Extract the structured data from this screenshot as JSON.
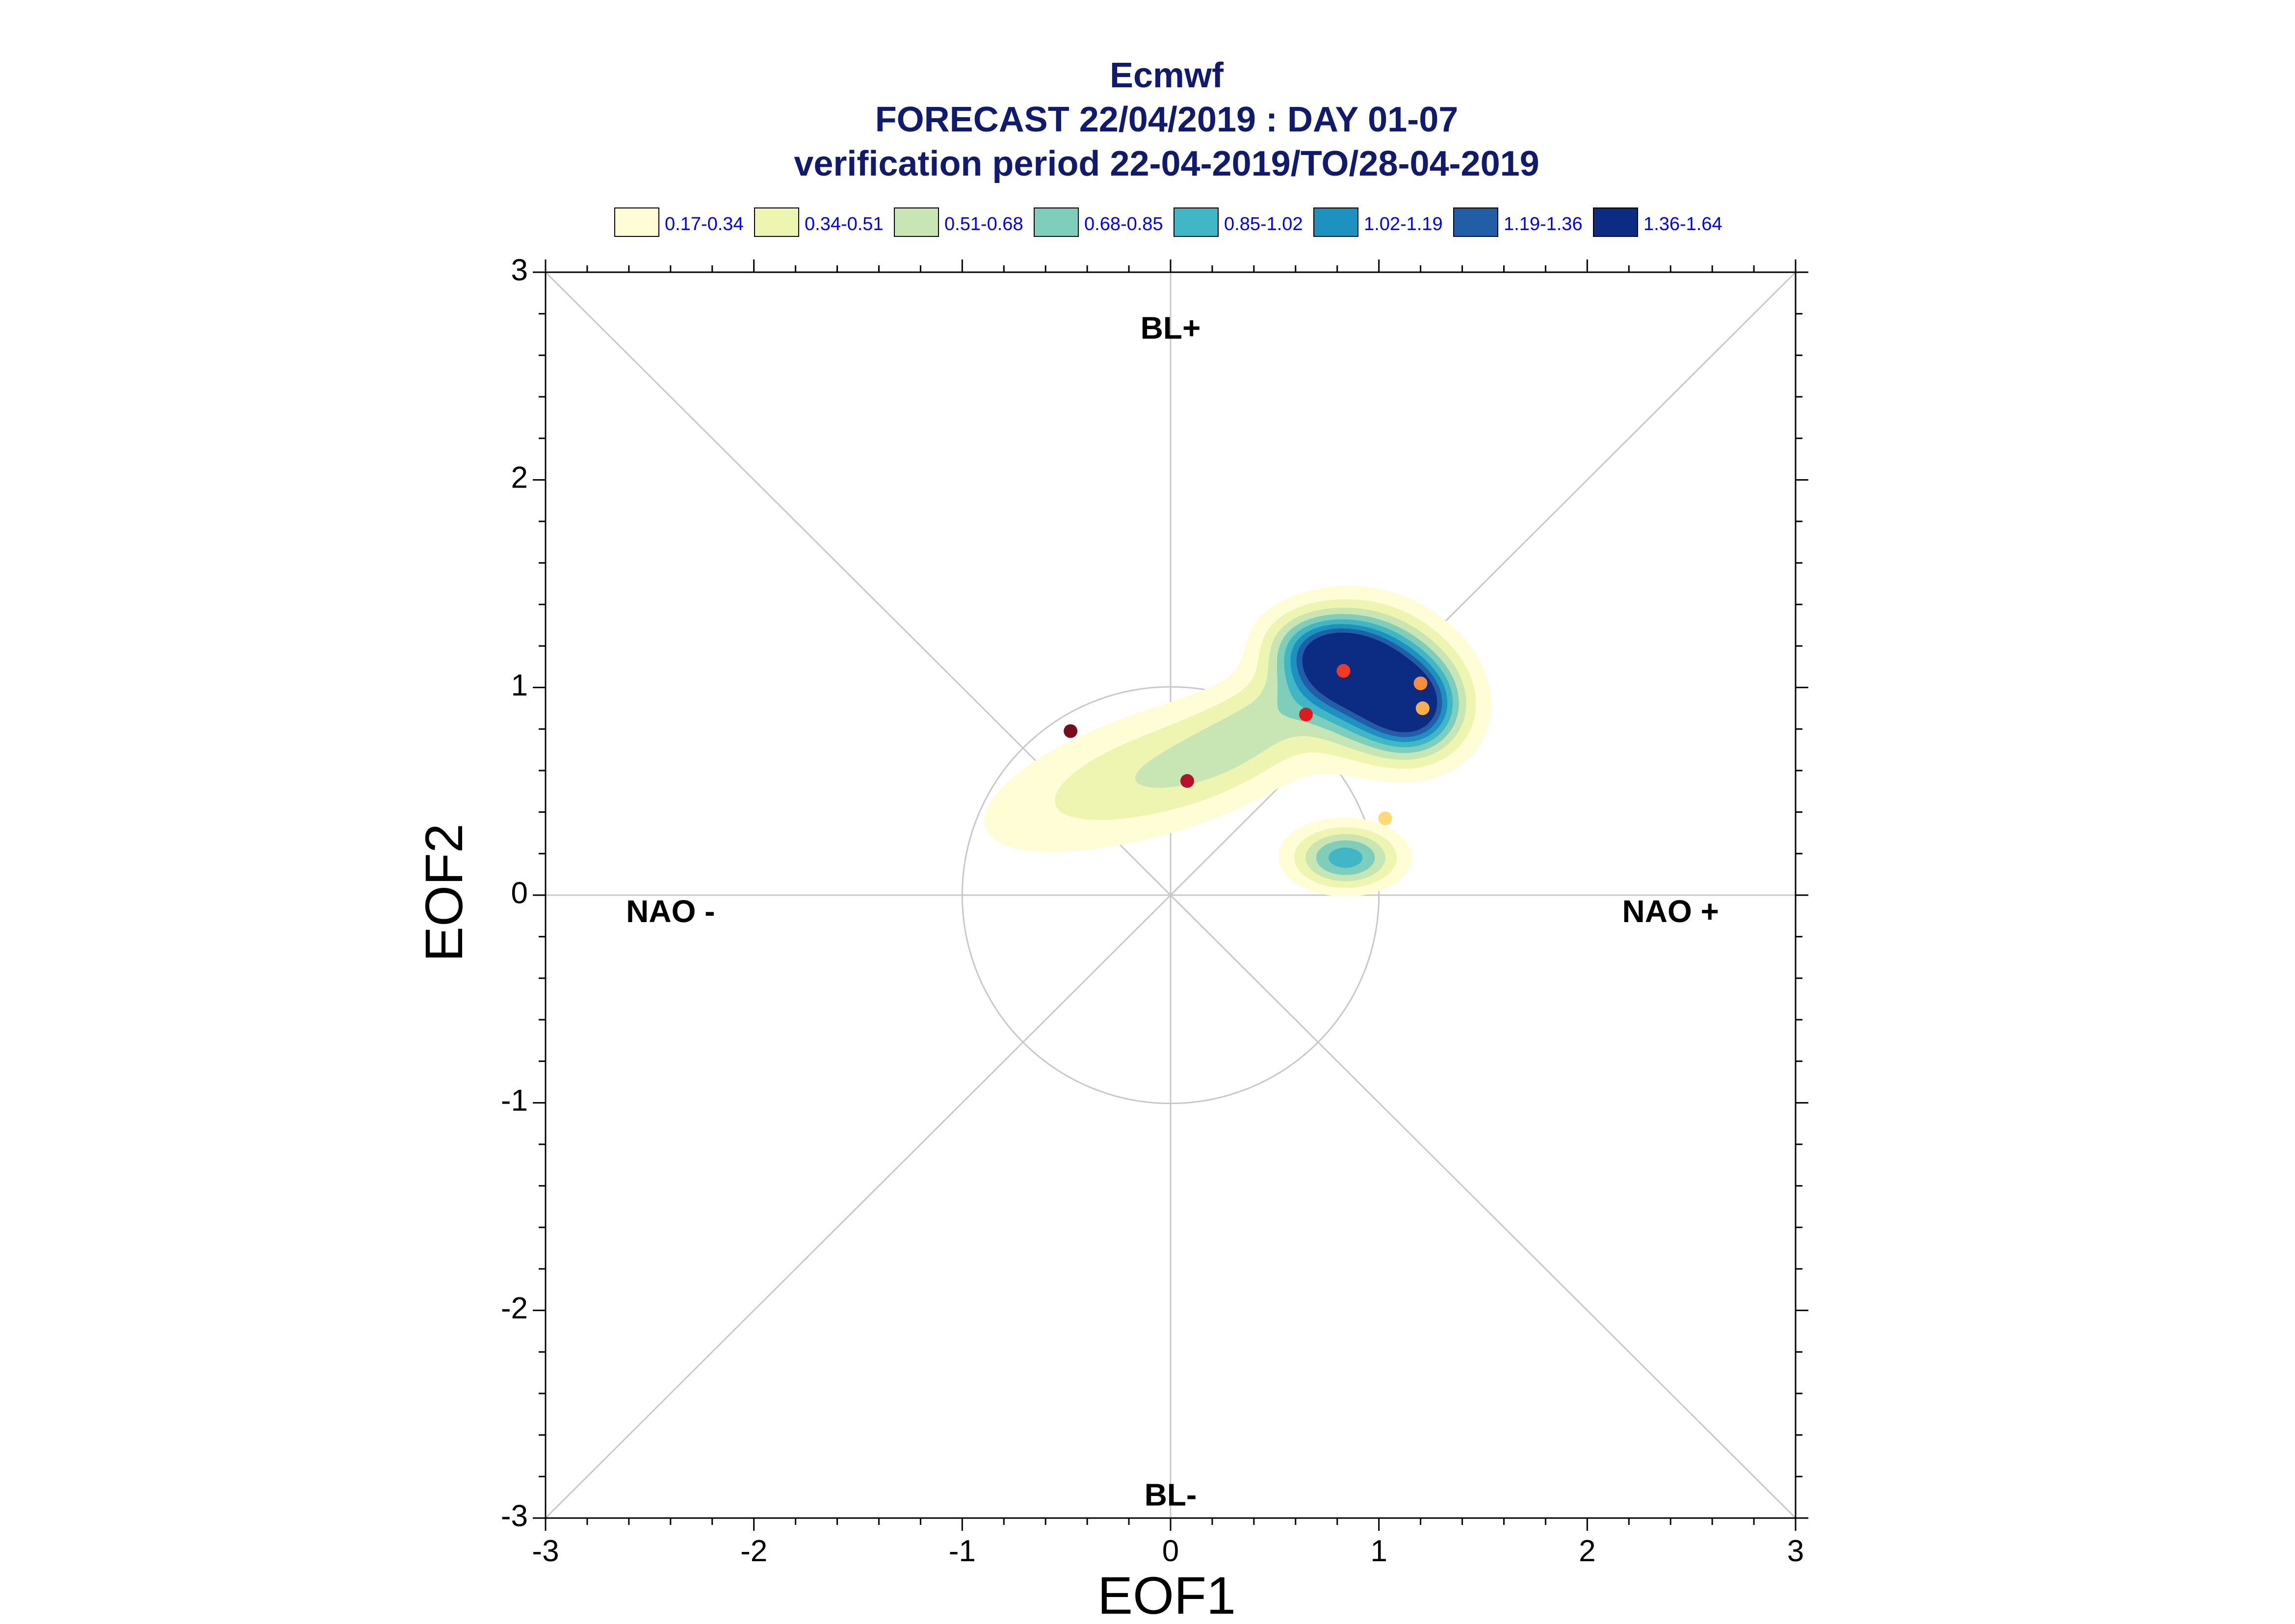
{
  "chart_data": {
    "type": "contour-scatter",
    "title": "Ecmwf",
    "subtitle_lines": [
      "FORECAST 22/04/2019 : DAY 01-07",
      "verification period 22-04-2019/TO/28-04-2019"
    ],
    "xlabel": "EOF1",
    "ylabel": "EOF2",
    "xlim": [
      -3,
      3
    ],
    "ylim": [
      -3,
      3
    ],
    "xticks": [
      "-3",
      "-2",
      "-1",
      "0",
      "1",
      "2",
      "3"
    ],
    "yticks": [
      "-3",
      "-2",
      "-1",
      "0",
      "1",
      "2",
      "3"
    ],
    "regimes": [
      {
        "label": "BL+",
        "x": 0,
        "y": 2.72
      },
      {
        "label": "BL-",
        "x": 0,
        "y": -2.9
      },
      {
        "label": "NAO -",
        "x": -2.4,
        "y": -0.09
      },
      {
        "label": "NAO +",
        "x": 2.4,
        "y": -0.09
      }
    ],
    "reference_circle_radius": 1,
    "legend": [
      {
        "label": "0.17-0.34",
        "color": "#fffdd6"
      },
      {
        "label": "0.34-0.51",
        "color": "#eef5b0"
      },
      {
        "label": "0.51-0.68",
        "color": "#c8e6b4"
      },
      {
        "label": "0.68-0.85",
        "color": "#7fcdbb"
      },
      {
        "label": "0.85-1.02",
        "color": "#41b6c4"
      },
      {
        "label": "1.02-1.19",
        "color": "#1d91c0"
      },
      {
        "label": "1.19-1.36",
        "color": "#225ea8"
      },
      {
        "label": "1.36-1.64",
        "color": "#0c2c84"
      }
    ],
    "density_blobs": [
      {
        "cx": 1.0,
        "cy": 1.02,
        "sx": 0.26,
        "sy": 0.2,
        "rot": -30,
        "amp": 1.6
      },
      {
        "cx": 0.77,
        "cy": 1.15,
        "sx": 0.19,
        "sy": 0.12,
        "rot": -15,
        "amp": 0.9
      },
      {
        "cx": 1.17,
        "cy": 0.9,
        "sx": 0.13,
        "sy": 0.13,
        "rot": 0,
        "amp": 0.7
      },
      {
        "cx": -0.05,
        "cy": 0.6,
        "sx": 0.6,
        "sy": 0.2,
        "rot": 18,
        "amp": 0.5
      },
      {
        "cx": 0.45,
        "cy": 0.86,
        "sx": 0.32,
        "sy": 0.13,
        "rot": 35,
        "amp": 0.28
      },
      {
        "cx": 0.84,
        "cy": 0.18,
        "sx": 0.17,
        "sy": 0.1,
        "rot": 0,
        "amp": 0.95
      }
    ],
    "points": [
      {
        "x": -0.48,
        "y": 0.79,
        "color": "#7a0c1e"
      },
      {
        "x": 0.08,
        "y": 0.55,
        "color": "#b5112a"
      },
      {
        "x": 0.65,
        "y": 0.87,
        "color": "#e31a1c"
      },
      {
        "x": 0.83,
        "y": 1.08,
        "color": "#f03b20"
      },
      {
        "x": 1.2,
        "y": 1.02,
        "color": "#fd8d3c"
      },
      {
        "x": 1.21,
        "y": 0.9,
        "color": "#fdae4b"
      },
      {
        "x": 1.03,
        "y": 0.37,
        "color": "#fed976"
      }
    ]
  }
}
